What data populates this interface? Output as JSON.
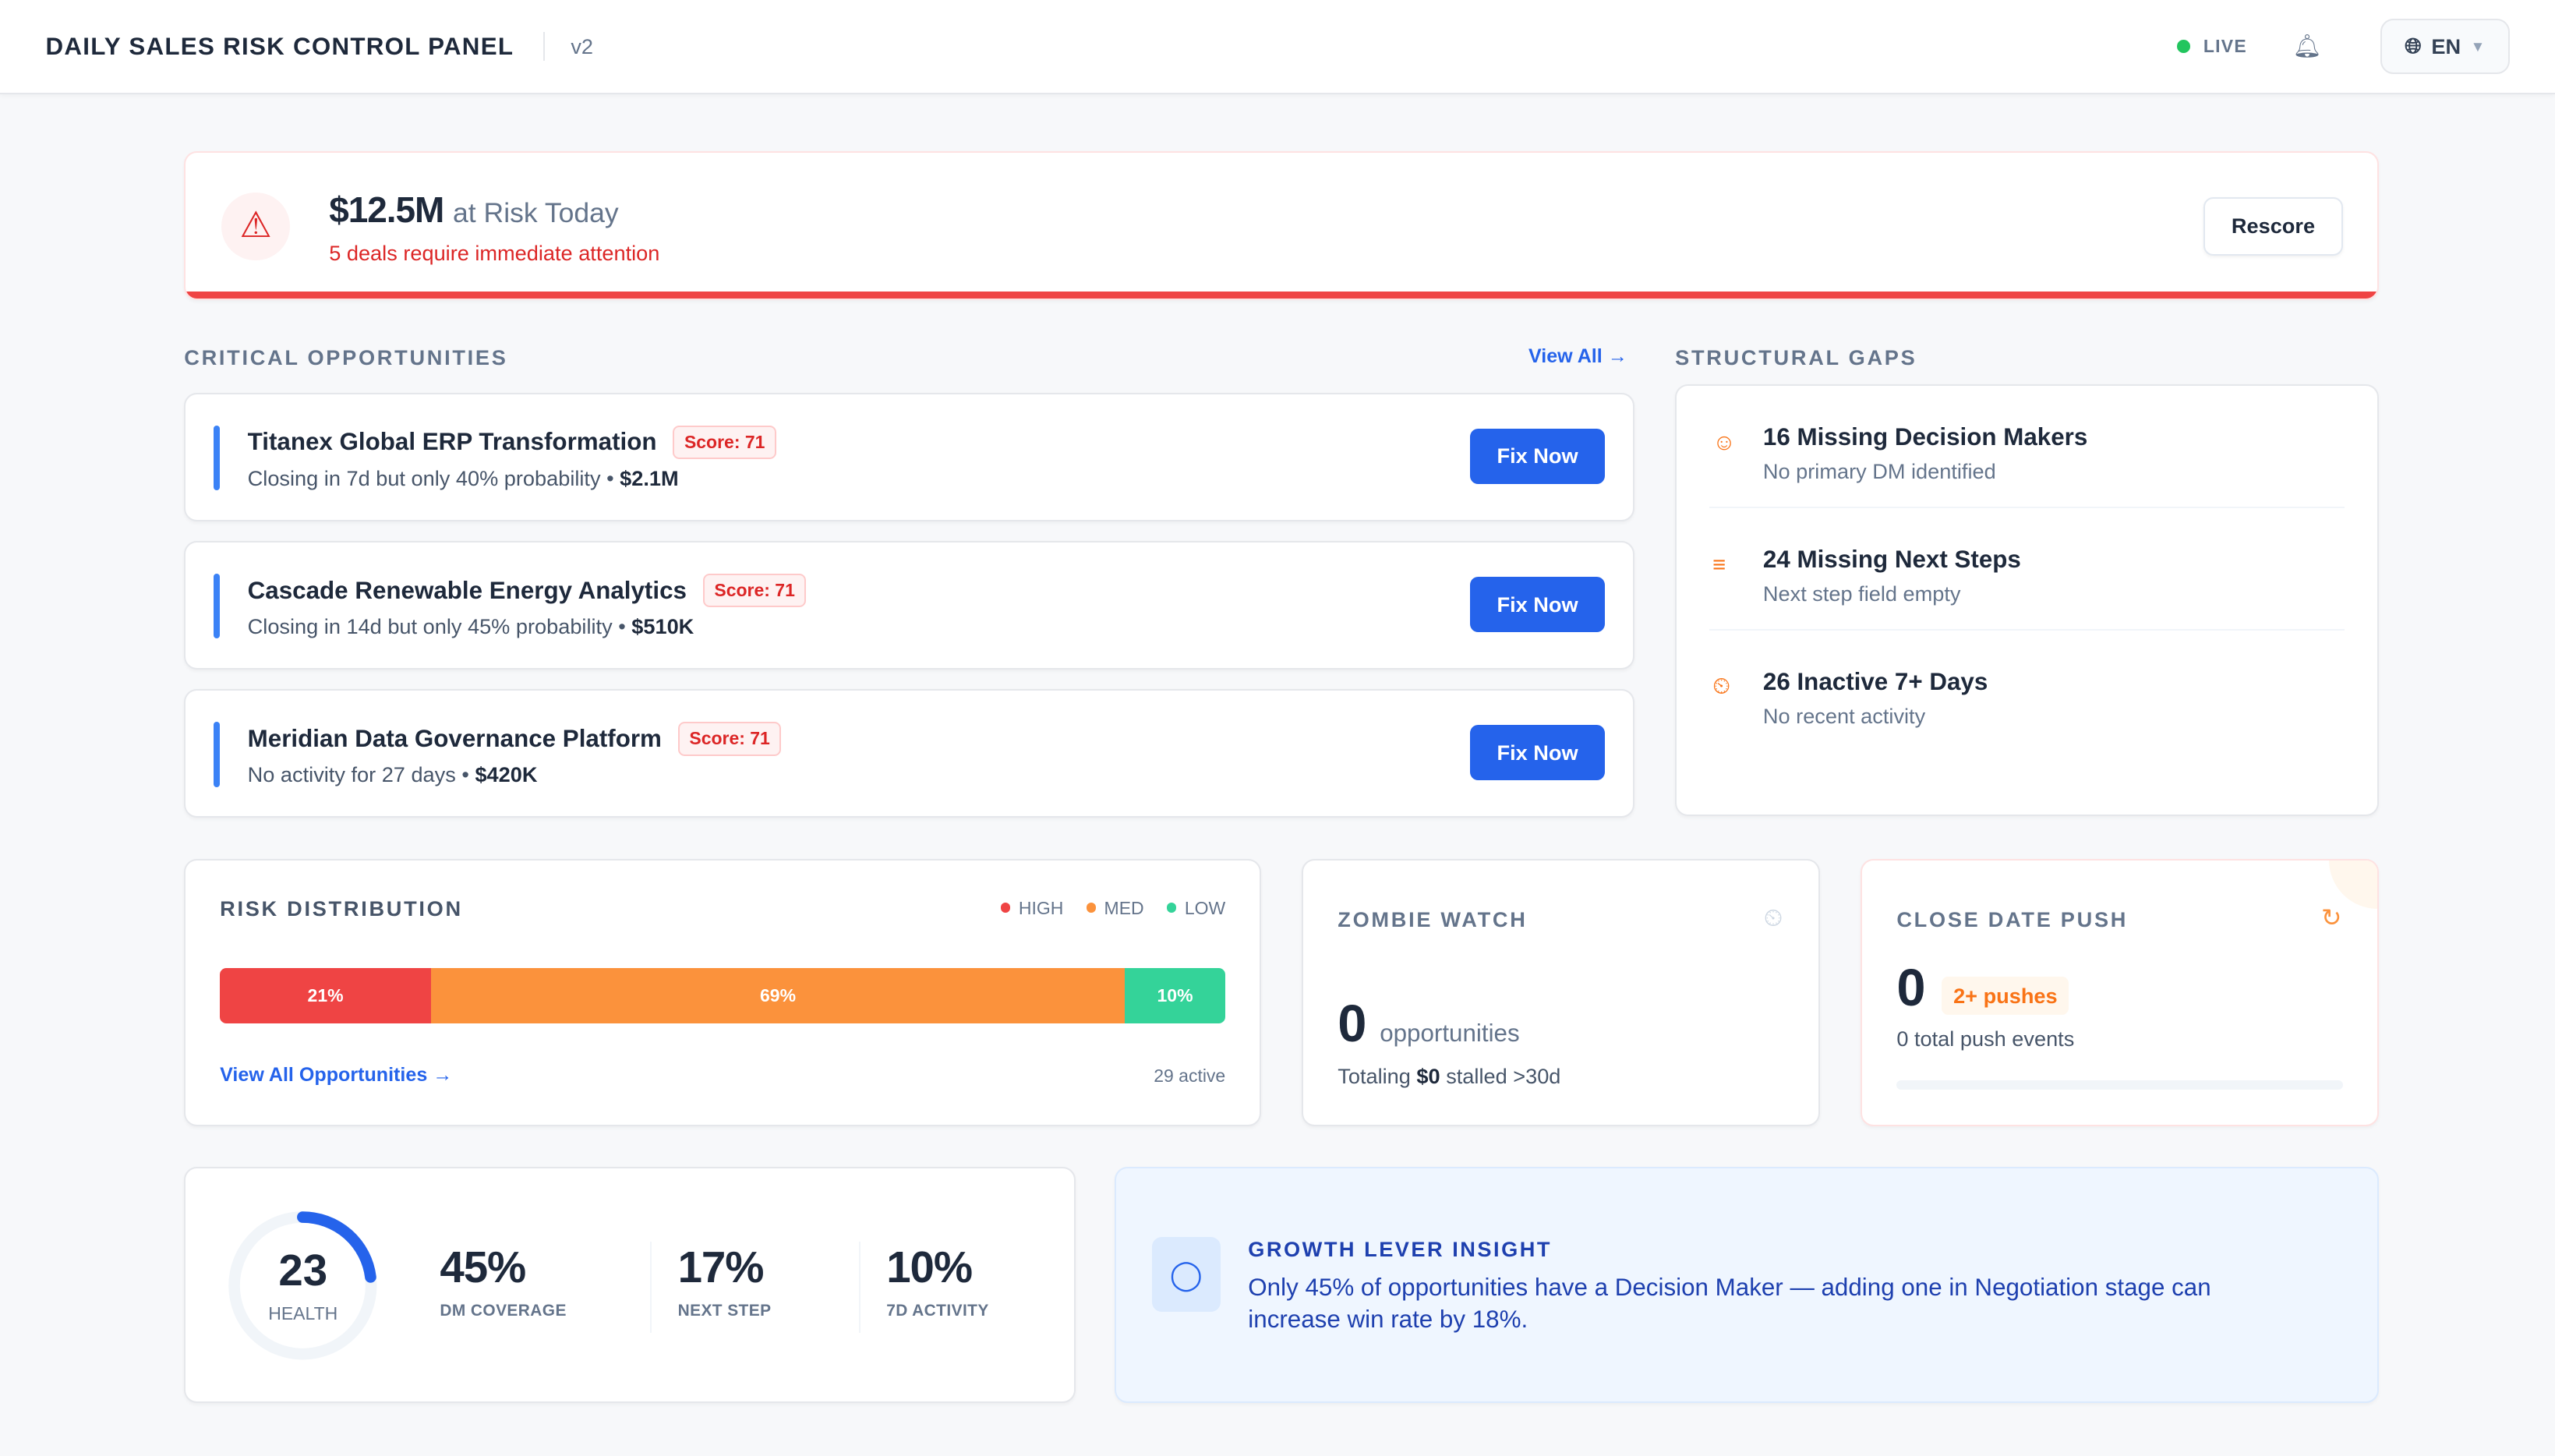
{
  "header": {
    "title": "DAILY SALES RISK CONTROL PANEL",
    "version": "v2",
    "live": "LIVE",
    "language": "EN",
    "icons": [
      "bell-icon",
      "globe-icon",
      "chevron-down-icon"
    ]
  },
  "alert": {
    "amount": "$12.5M",
    "amount_suffix": "at Risk Today",
    "subtitle": "5 deals require immediate attention",
    "rescore_label": "Rescore",
    "icon": "warning-triangle-icon",
    "accent_color": "#ef4444"
  },
  "critical": {
    "title": "CRITICAL OPPORTUNITIES",
    "view_all": "View All",
    "items": [
      {
        "name": "Titanex Global ERP Transformation",
        "score": "Score: 71",
        "detail": "Closing in 7d but only 40% probability",
        "amount": "$2.1M",
        "action": "Fix Now"
      },
      {
        "name": "Cascade Renewable Energy Analytics",
        "score": "Score: 71",
        "detail": "Closing in 14d but only 45% probability",
        "amount": "$510K",
        "action": "Fix Now"
      },
      {
        "name": "Meridian Data Governance Platform",
        "score": "Score: 71",
        "detail": "No activity for 27 days",
        "amount": "$420K",
        "action": "Fix Now"
      }
    ]
  },
  "gaps": {
    "title": "STRUCTURAL GAPS",
    "items": [
      {
        "title": "16 Missing Decision Makers",
        "subtitle": "No primary DM identified",
        "icon": "user-minus-icon"
      },
      {
        "title": "24 Missing Next Steps",
        "subtitle": "Next step field empty",
        "icon": "list-edit-icon"
      },
      {
        "title": "26 Inactive 7+ Days",
        "subtitle": "No recent activity",
        "icon": "timer-off-icon"
      }
    ]
  },
  "risk": {
    "title": "RISK DISTRIBUTION",
    "legend": [
      "HIGH",
      "MED",
      "LOW"
    ],
    "segments": [
      {
        "label": "21%",
        "value": 21,
        "color": "#ef4444"
      },
      {
        "label": "69%",
        "value": 69,
        "color": "#fb923c"
      },
      {
        "label": "10%",
        "value": 10,
        "color": "#34d399"
      }
    ],
    "view_all": "View All Opportunities",
    "active": "29 active"
  },
  "zombie": {
    "title": "ZOMBIE WATCH",
    "count": "0",
    "unit": "opportunities",
    "total_prefix": "Totaling",
    "total_value": "$0",
    "total_suffix": "stalled >30d"
  },
  "close_push": {
    "title": "CLOSE DATE PUSH",
    "count": "0",
    "badge": "2+ pushes",
    "subtitle": "0 total push events",
    "progress": 0
  },
  "health": {
    "score": "23",
    "score_value": 23,
    "label": "HEALTH",
    "metrics": [
      {
        "value": "45%",
        "label": "DM COVERAGE"
      },
      {
        "value": "17%",
        "label": "NEXT STEP"
      },
      {
        "value": "10%",
        "label": "7D ACTIVITY"
      }
    ]
  },
  "insight": {
    "title": "GROWTH LEVER INSIGHT",
    "text": "Only 45% of opportunities have a Decision Maker — adding one in Negotiation stage can increase win rate by 18%.",
    "icon": "lightbulb-icon"
  }
}
